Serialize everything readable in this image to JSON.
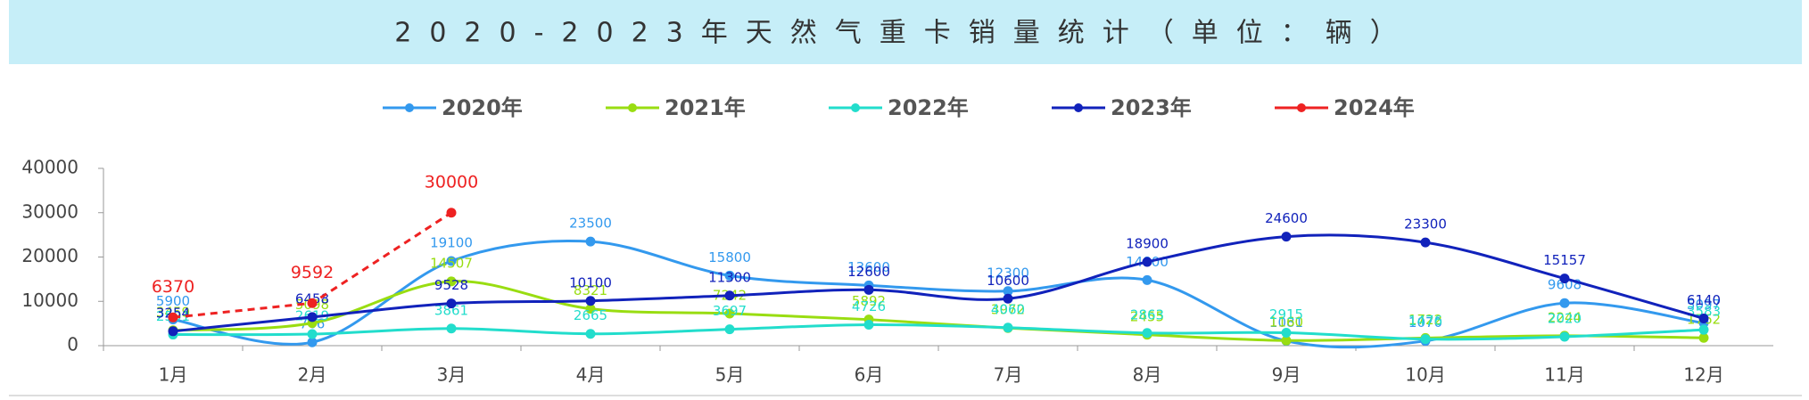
{
  "chart_data": {
    "type": "line",
    "title": "2020-2023年天然气重卡销量统计（单位：辆）",
    "categories": [
      "1月",
      "2月",
      "3月",
      "4月",
      "5月",
      "6月",
      "7月",
      "8月",
      "9月",
      "10月",
      "11月",
      "12月"
    ],
    "ylim": [
      0,
      40000
    ],
    "yticks": [
      0,
      10000,
      20000,
      30000,
      40000
    ],
    "grid": false,
    "smooth": true,
    "legend": "top",
    "series": [
      {
        "name": "2020年",
        "color": "#3399ee",
        "values": [
          5900,
          766,
          19100,
          23500,
          15800,
          13600,
          12300,
          14800,
          1081,
          1070,
          9608,
          5097
        ]
      },
      {
        "name": "2021年",
        "color": "#99dd11",
        "values": [
          3459,
          5098,
          14507,
          8321,
          7242,
          5892,
          3972,
          2455,
          1160,
          1722,
          2244,
          1762
        ]
      },
      {
        "name": "2022年",
        "color": "#22ddcc",
        "values": [
          2501,
          2619,
          3861,
          2665,
          3697,
          4726,
          4060,
          2863,
          2915,
          1476,
          2020,
          3583
        ]
      },
      {
        "name": "2023年",
        "color": "#1122bb",
        "values": [
          3254,
          6458,
          9528,
          10100,
          11300,
          12600,
          10600,
          18900,
          24600,
          23300,
          15157,
          6140
        ]
      },
      {
        "name": "2024年",
        "color": "#ee2222",
        "dashed": true,
        "values": [
          6370,
          9592,
          30000,
          null,
          null,
          null,
          null,
          null,
          null,
          null,
          null,
          null
        ]
      }
    ]
  }
}
